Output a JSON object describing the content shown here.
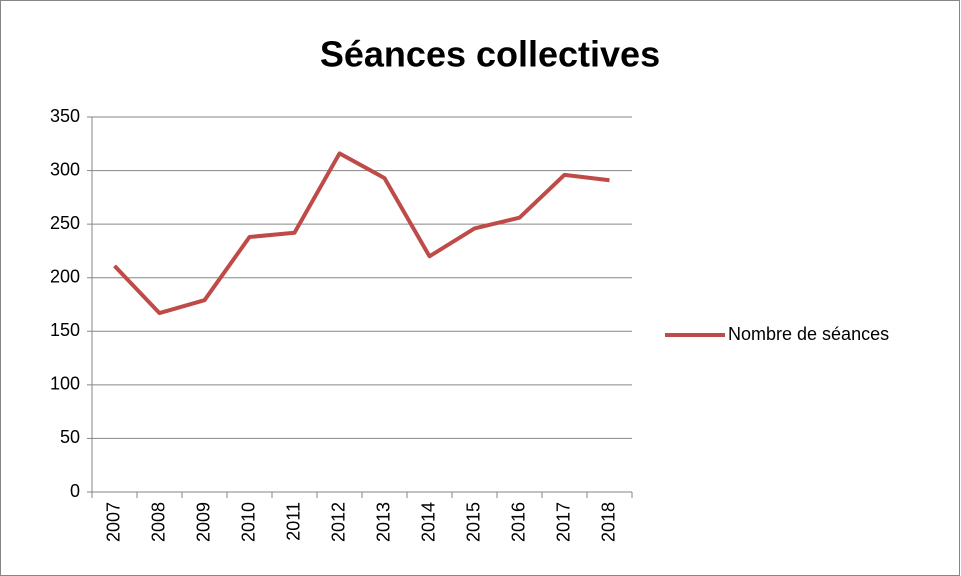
{
  "chart_data": {
    "type": "line",
    "title": "Séances collectives",
    "categories": [
      "2007",
      "2008",
      "2009",
      "2010",
      "2011",
      "2012",
      "2013",
      "2014",
      "2015",
      "2016",
      "2017",
      "2018"
    ],
    "series": [
      {
        "name": "Nombre de séances",
        "color": "#be4b48",
        "values": [
          211,
          167,
          179,
          238,
          242,
          316,
          293,
          220,
          246,
          256,
          296,
          291
        ]
      }
    ],
    "ylim": [
      0,
      350
    ],
    "yticks": [
      0,
      50,
      100,
      150,
      200,
      250,
      300,
      350
    ],
    "grid": true,
    "legend": "right"
  }
}
